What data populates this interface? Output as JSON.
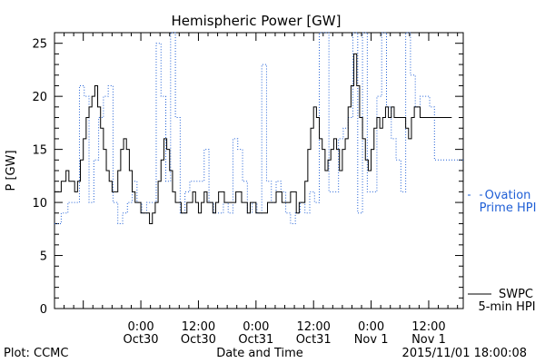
{
  "chart_data": {
    "type": "line",
    "title": "Hemispheric Power [GW]",
    "xlabel": "Date and Time",
    "ylabel": "P [GW]",
    "ylim": [
      0,
      26
    ],
    "yticks": [
      0,
      5,
      10,
      15,
      20,
      25
    ],
    "xlim_hours": [
      -9,
      30
    ],
    "xticks": [
      {
        "hour": 0,
        "label1": "0:00",
        "label2": "Oct30"
      },
      {
        "hour": 6,
        "label1": "12:00",
        "label2": "Oct30"
      },
      {
        "hour": 12,
        "label1": "0:00",
        "label2": "Oct31"
      },
      {
        "hour": 18,
        "label1": "12:00",
        "label2": "Oct31"
      },
      {
        "hour": 24,
        "label1": "0:00",
        "label2": "Nov 1"
      },
      {
        "hour": 30,
        "label1": "12:00",
        "label2": "Nov 1"
      }
    ],
    "series": [
      {
        "name": "SWPC 5-min HPI",
        "legend_line1": "SWPC",
        "legend_line2": "5-min HPI",
        "color": "#000000",
        "style": "solid",
        "x": [
          -9,
          -8.3,
          -7.8,
          -7.5,
          -7.2,
          -6.9,
          -6.6,
          -6.3,
          -6.0,
          -5.7,
          -5.4,
          -5.1,
          -4.8,
          -4.5,
          -4.2,
          -3.9,
          -3.6,
          -3.3,
          -3.0,
          -2.7,
          -2.4,
          -2.1,
          -1.8,
          -1.5,
          -1.2,
          -0.9,
          -0.6,
          -0.3,
          0.0,
          0.3,
          0.6,
          0.9,
          1.2,
          1.5,
          1.8,
          2.1,
          2.4,
          2.7,
          3.0,
          3.3,
          3.6,
          3.9,
          4.2,
          4.5,
          4.8,
          5.1,
          5.4,
          5.7,
          6.0,
          6.3,
          6.6,
          6.9,
          7.2,
          7.5,
          7.8,
          8.1,
          8.4,
          8.7,
          9.0,
          9.3,
          9.6,
          9.9,
          10.2,
          10.5,
          10.8,
          11.1,
          11.4,
          11.7,
          12.0,
          12.3,
          12.6,
          12.9,
          13.2,
          13.5,
          13.8,
          14.1,
          14.4,
          14.7,
          15.0,
          15.3,
          15.6,
          15.9,
          16.2,
          16.5,
          16.8,
          17.1,
          17.4,
          17.7,
          18.0,
          18.3,
          18.6,
          18.9,
          19.2,
          19.5,
          19.8,
          20.1,
          20.4,
          20.7,
          21.0,
          21.3,
          21.6,
          21.9,
          22.2,
          22.5,
          22.8,
          23.1,
          23.4,
          23.7,
          24.0,
          24.3,
          24.6,
          24.9,
          25.2,
          25.5,
          25.8,
          26.1,
          26.4,
          26.7,
          27.0,
          27.3,
          27.6,
          27.9,
          28.2,
          28.5,
          28.8,
          29.1,
          29.4,
          29.7,
          30.0,
          30.3,
          30.6,
          30.9,
          31.2,
          31.5,
          31.8,
          32.1,
          32.4
        ],
        "y": [
          11,
          12,
          13,
          12,
          12,
          11,
          12,
          14,
          16,
          18,
          19,
          20,
          21,
          19,
          17,
          15,
          13,
          12,
          11,
          11,
          13,
          15,
          16,
          15,
          13,
          11,
          10,
          10,
          9,
          9,
          9,
          8,
          9,
          10,
          12,
          14,
          16,
          15,
          13,
          11,
          10,
          10,
          9,
          9,
          10,
          10,
          11,
          10,
          9,
          10,
          11,
          10,
          10,
          9,
          10,
          11,
          11,
          10,
          10,
          10,
          10,
          11,
          11,
          10,
          10,
          9,
          10,
          10,
          9,
          9,
          9,
          9,
          10,
          10,
          10,
          11,
          11,
          10,
          10,
          10,
          11,
          11,
          9,
          10,
          10,
          12,
          15,
          17,
          19,
          18,
          16,
          15,
          13,
          14,
          15,
          16,
          15,
          13,
          15,
          16,
          19,
          21,
          24,
          21,
          18,
          16,
          14,
          13,
          15,
          17,
          18,
          17,
          18,
          19,
          18,
          19,
          18,
          18,
          18,
          18,
          17,
          16,
          18,
          19,
          19,
          18,
          18,
          18,
          18,
          18,
          18,
          18,
          18,
          18,
          18,
          18,
          18
        ],
        "y_plot_note": ""
      },
      {
        "name": "Ovation Prime HPI",
        "legend_line1": "Ovation",
        "legend_line2": "Prime HPI",
        "color": "#1f5fd6",
        "style": "dotted-step",
        "x": [
          -9,
          -8.3,
          -7.6,
          -6.9,
          -6.4,
          -5.9,
          -5.4,
          -4.9,
          -4.4,
          -3.9,
          -3.4,
          -2.9,
          -2.4,
          -1.9,
          -1.4,
          -0.9,
          -0.4,
          0.1,
          0.6,
          1.1,
          1.6,
          2.1,
          2.6,
          3.1,
          3.6,
          4.1,
          4.6,
          5.1,
          5.6,
          6.1,
          6.6,
          7.1,
          7.6,
          8.1,
          8.6,
          9.1,
          9.6,
          10.1,
          10.6,
          11.1,
          11.6,
          12.1,
          12.6,
          13.1,
          13.6,
          14.1,
          14.6,
          15.1,
          15.6,
          16.1,
          16.6,
          17.1,
          17.6,
          18.1,
          18.6,
          19.1,
          19.6,
          20.1,
          20.6,
          21.1,
          21.6,
          22.1,
          22.6,
          23.1,
          23.6,
          24.1,
          24.6,
          25.1,
          25.6,
          26.1,
          26.6,
          27.1,
          27.6,
          28.1,
          28.6,
          29.1,
          29.6,
          30.1,
          30.6,
          31.1,
          31.6,
          32.1
        ],
        "y": [
          8,
          9,
          10,
          10,
          21,
          20,
          10,
          14,
          18,
          20,
          21,
          10,
          8,
          9,
          10,
          12,
          10,
          9,
          10,
          10,
          25,
          20,
          12,
          26,
          18,
          9,
          11,
          12,
          12,
          12,
          15,
          10,
          9,
          9,
          10,
          9,
          16,
          15,
          12,
          9,
          10,
          9,
          23,
          12,
          10,
          12,
          11,
          9,
          8,
          9,
          10,
          9,
          11,
          10,
          26,
          26,
          11,
          11,
          16,
          17,
          18,
          26,
          9,
          26,
          11,
          11,
          20,
          26,
          19,
          16,
          14,
          11,
          26,
          22,
          19,
          20,
          20,
          19,
          14,
          14,
          14,
          14
        ]
      }
    ]
  },
  "footer": {
    "left": "Plot: CCMC",
    "right": "2015/11/01 18:00:08"
  }
}
